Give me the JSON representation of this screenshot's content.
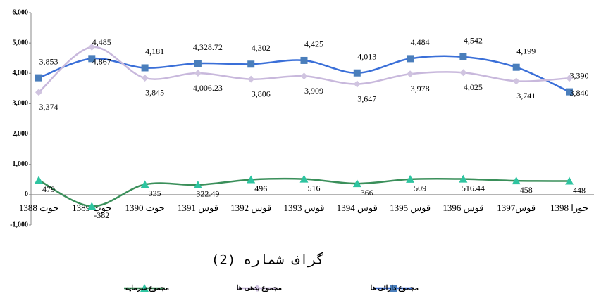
{
  "chart_data": {
    "type": "line",
    "title": "گراف شماره (2)",
    "categories": [
      "حوت 1388",
      "حوت 1389",
      "حوت 1390",
      "قوس 1391",
      "قوس 1392",
      "قوس 1393",
      "قوس 1394",
      "قوس 1395",
      "قوس 1396",
      "قوس1397",
      "جوزا 1398"
    ],
    "series": [
      {
        "name": "مجموع دارائی ها",
        "color": "#3a6fd8",
        "marker": "square",
        "values": [
          3853,
          4485,
          4181,
          4328.72,
          4302,
          4425,
          4013,
          4484,
          4542,
          4199,
          3390
        ],
        "value_labels": [
          "3,853",
          "4,485",
          "4,181",
          "4,328.72",
          "4,302",
          "4,425",
          "4,013",
          "4,484",
          "4,542",
          "4,199",
          "3,390"
        ]
      },
      {
        "name": "مجموع بدهی ها",
        "color": "#c8b8dc",
        "marker": "diamond",
        "values": [
          3374,
          4867,
          3845,
          4006.23,
          3806,
          3909,
          3647,
          3978,
          4025,
          3741,
          3840
        ],
        "value_labels": [
          "3,374",
          "4,867",
          "3,845",
          "4,006.23",
          "3,806",
          "3,909",
          "3,647",
          "3,978",
          "4,025",
          "3,741",
          "3,840"
        ]
      },
      {
        "name": "مجموع سرمایه",
        "color": "#3a8f5a",
        "marker": "triangle",
        "values": [
          479,
          -382,
          335,
          322.49,
          496,
          516,
          366,
          509,
          516.44,
          458,
          448
        ],
        "value_labels": [
          "479",
          "-382",
          "335",
          "322.49",
          "496",
          "516",
          "366",
          "509",
          "516.44",
          "458",
          "448"
        ]
      }
    ],
    "ylim": [
      -1000,
      6000
    ],
    "yticks": [
      {
        "value": -1000,
        "label": "-1,000"
      },
      0,
      {
        "value": 1000,
        "label": "1,000"
      },
      {
        "value": 2000,
        "label": "2,000"
      },
      {
        "value": 3000,
        "label": "3,000"
      },
      {
        "value": 4000,
        "label": "4,000"
      },
      {
        "value": 5000,
        "label": "5,000"
      },
      {
        "value": 6000,
        "label": "6,000"
      }
    ],
    "legend": "bottom"
  }
}
